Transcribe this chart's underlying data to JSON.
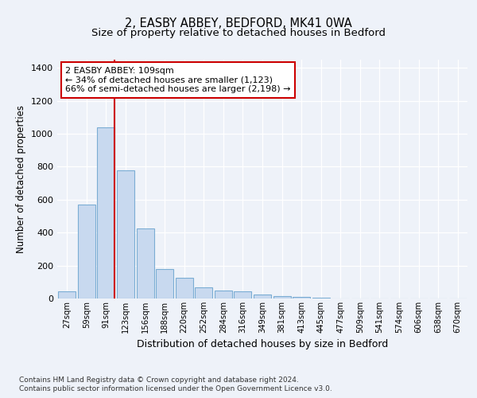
{
  "title": "2, EASBY ABBEY, BEDFORD, MK41 0WA",
  "subtitle": "Size of property relative to detached houses in Bedford",
  "xlabel": "Distribution of detached houses by size in Bedford",
  "ylabel": "Number of detached properties",
  "bar_labels": [
    "27sqm",
    "59sqm",
    "91sqm",
    "123sqm",
    "156sqm",
    "188sqm",
    "220sqm",
    "252sqm",
    "284sqm",
    "316sqm",
    "349sqm",
    "381sqm",
    "413sqm",
    "445sqm",
    "477sqm",
    "509sqm",
    "541sqm",
    "574sqm",
    "606sqm",
    "638sqm",
    "670sqm"
  ],
  "bar_values": [
    45,
    570,
    1040,
    780,
    425,
    180,
    125,
    70,
    50,
    45,
    25,
    15,
    10,
    5,
    2,
    1,
    0,
    0,
    0,
    0,
    0
  ],
  "bar_color": "#c8d9ef",
  "bar_edge_color": "#7badd4",
  "vline_color": "#cc0000",
  "vline_x_index": 2,
  "annotation_line1": "2 EASBY ABBEY: 109sqm",
  "annotation_line2": "← 34% of detached houses are smaller (1,123)",
  "annotation_line3": "66% of semi-detached houses are larger (2,198) →",
  "annotation_box_color": "#cc0000",
  "ylim": [
    0,
    1450
  ],
  "yticks": [
    0,
    200,
    400,
    600,
    800,
    1000,
    1200,
    1400
  ],
  "bg_color": "#eef2f9",
  "plot_bg_color": "#eef2f9",
  "footer_line1": "Contains HM Land Registry data © Crown copyright and database right 2024.",
  "footer_line2": "Contains public sector information licensed under the Open Government Licence v3.0.",
  "title_fontsize": 10.5,
  "subtitle_fontsize": 9.5,
  "xlabel_fontsize": 9,
  "ylabel_fontsize": 8.5,
  "annotation_fontsize": 8
}
